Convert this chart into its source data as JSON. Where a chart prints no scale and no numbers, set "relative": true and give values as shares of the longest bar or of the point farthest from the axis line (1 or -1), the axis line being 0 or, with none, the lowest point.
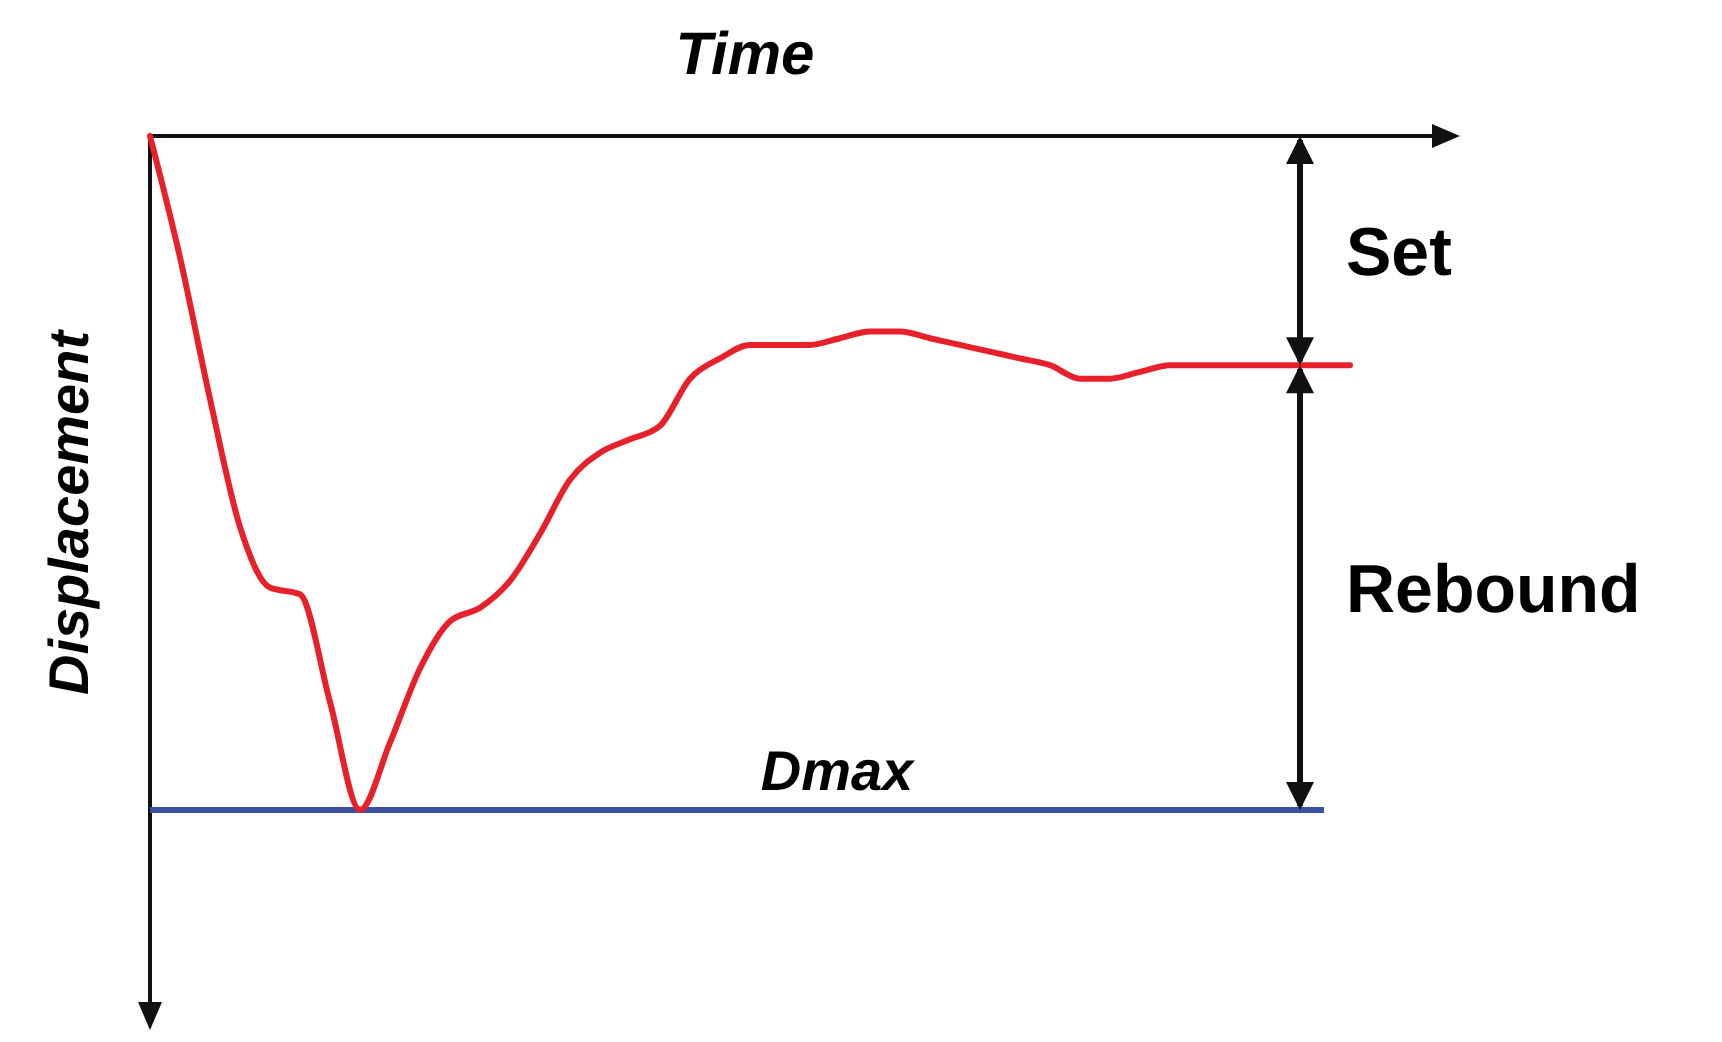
{
  "chart_data": {
    "type": "line",
    "relative": true,
    "xlabel": "Time",
    "ylabel": "Displacement",
    "categories": [
      null,
      null,
      null,
      null,
      null,
      null,
      null,
      null,
      null,
      null,
      null,
      null,
      null,
      null,
      null,
      null,
      null,
      null,
      null,
      null,
      null,
      null,
      null,
      null,
      null,
      null,
      null,
      null,
      null,
      null,
      null,
      null,
      null,
      null,
      null,
      null,
      null,
      null,
      null,
      null,
      null
    ],
    "series": [
      {
        "color": "#e8202a",
        "values": [
          0,
          -0.18,
          -0.39,
          -0.58,
          -0.67,
          -0.68,
          -0.84,
          -1,
          -0.9,
          -0.79,
          -0.72,
          -0.7,
          -0.66,
          -0.59,
          -0.51,
          -0.47,
          -0.45,
          -0.43,
          -0.36,
          -0.33,
          -0.31,
          -0.31,
          -0.31,
          -0.3,
          -0.29,
          -0.29,
          -0.3,
          -0.31,
          -0.32,
          -0.33,
          -0.34,
          -0.36,
          -0.36,
          -0.35,
          -0.34,
          -0.34,
          -0.34,
          -0.34,
          -0.34,
          -0.34,
          -0.34
        ]
      }
    ],
    "ref_lines": [
      {
        "axis": "y",
        "value": -1,
        "label": "Dmax",
        "color": "#3a4fa0"
      }
    ],
    "annotations": [
      "Set",
      "Rebound"
    ],
    "marker": "none",
    "line_style": "solid"
  }
}
